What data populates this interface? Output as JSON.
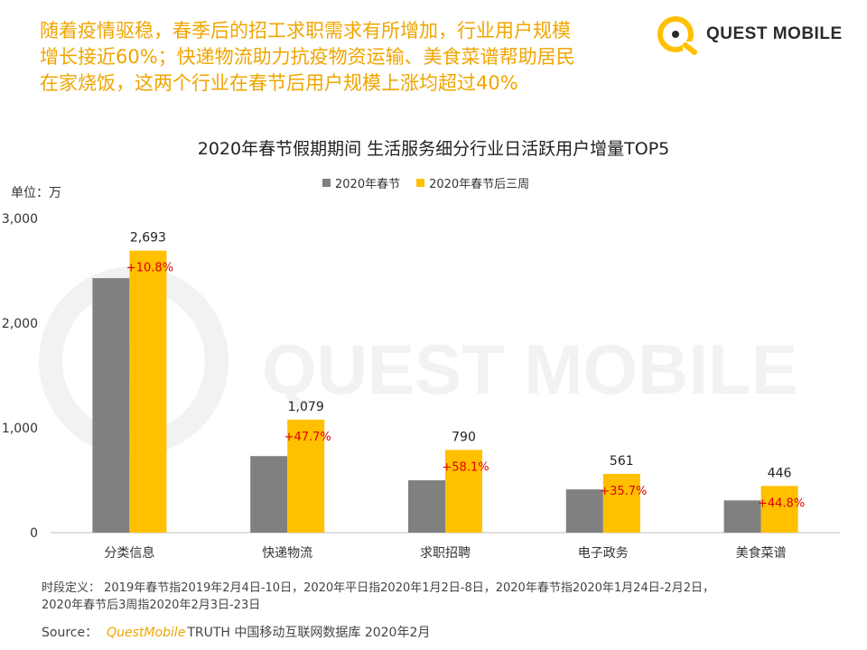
{
  "header": {
    "headline_lines": [
      "随着疫情驱稳，春季后的招工求职需求有所增加，行业用户规模",
      "增长接近60%；快递物流助力抗疫物资运输、美食菜谱帮助居民",
      "在家烧饭，这两个行业在春节后用户规模上涨均超过40%"
    ],
    "logo_text": "QUEST MOBILE"
  },
  "watermark": "QUEST MOBILE",
  "colors": {
    "accent": "#f0a500",
    "series1": "#808080",
    "series2": "#ffc000",
    "growth": "#e00000"
  },
  "chart_data": {
    "type": "bar",
    "title": "2020年春节假期期间 生活服务细分行业日活跃用户增量TOP5",
    "unit_label": "单位：万",
    "categories": [
      "分类信息",
      "快递物流",
      "求职招聘",
      "电子政务",
      "美食菜谱"
    ],
    "series": [
      {
        "name": "2020年春节",
        "values": [
          2430,
          731,
          500,
          413,
          308
        ]
      },
      {
        "name": "2020年春节后三周",
        "values": [
          2693,
          1079,
          790,
          561,
          446
        ]
      }
    ],
    "value_labels": [
      "2,693",
      "1,079",
      "790",
      "561",
      "446"
    ],
    "growth_labels": [
      "+10.8%",
      "+47.7%",
      "+58.1%",
      "+35.7%",
      "+44.8%"
    ],
    "yticks": [
      0,
      1000,
      2000,
      3000
    ],
    "ytick_labels": [
      "0",
      "1,000",
      "2,000",
      "3,000"
    ],
    "ylim": [
      0,
      3000
    ],
    "legend_position": "top-center"
  },
  "footer": {
    "definition_line1": "时段定义： 2019年春节指2019年2月4日-10日，2020年平日指2020年1月2日-8日，2020年春节指2020年1月24日-2月2日，",
    "definition_line2": "2020年春节后3周指2020年2月3日-23日",
    "source_label": "Source：",
    "source_brand": "QuestMobile",
    "source_rest": "TRUTH 中国移动互联网数据库 2020年2月"
  }
}
